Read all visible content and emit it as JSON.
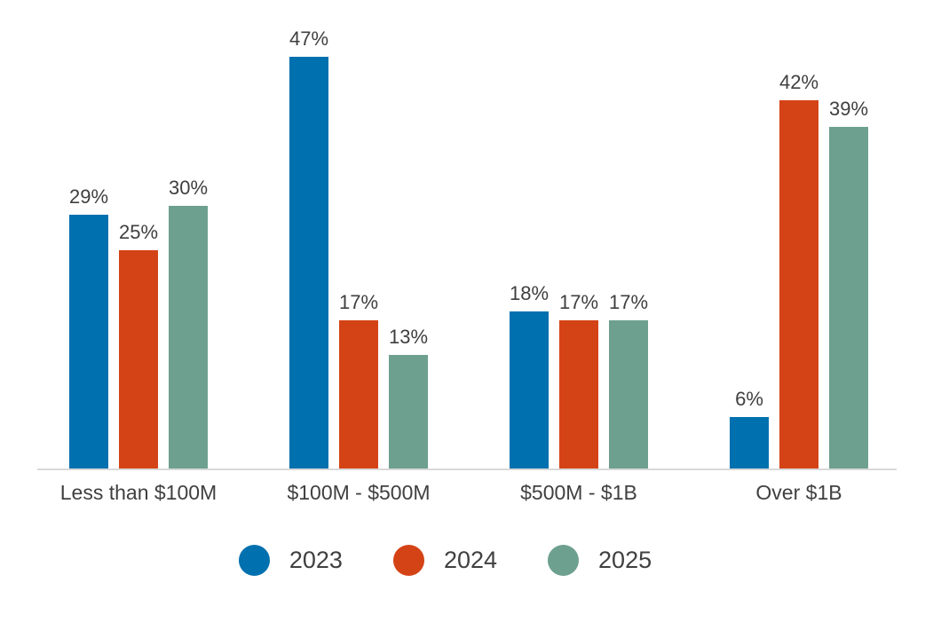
{
  "chart_data": {
    "type": "bar",
    "title": "",
    "categories": [
      "Less than $100M",
      "$100M - $500M",
      "$500M - $1B",
      "Over $1B"
    ],
    "series": [
      {
        "name": "2023",
        "color": "#0070AF",
        "values": [
          29,
          47,
          18,
          6
        ]
      },
      {
        "name": "2024",
        "color": "#D44316",
        "values": [
          25,
          17,
          17,
          42
        ]
      },
      {
        "name": "2025",
        "color": "#6EA08F",
        "values": [
          30,
          13,
          17,
          39
        ]
      }
    ],
    "data_labels": {
      "2023": [
        "29%",
        "47%",
        "18%",
        "6%"
      ],
      "2024": [
        "25%",
        "17%",
        "17%",
        "42%"
      ],
      "2025": [
        "30%",
        "13%",
        "17%",
        "39%"
      ]
    },
    "value_suffix": "%",
    "ylim": [
      0,
      50
    ],
    "grid": false,
    "legend_position": "bottom",
    "axis_line_color": "#D9D9D9",
    "label_text_color": "#404040"
  }
}
